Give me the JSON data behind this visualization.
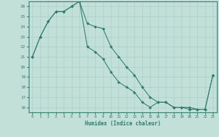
{
  "line1_x": [
    0,
    1,
    2,
    3,
    4,
    5,
    6,
    7,
    8,
    9,
    10,
    11,
    12,
    13,
    14,
    15,
    16,
    17,
    18,
    19,
    20,
    21,
    22,
    23
  ],
  "line1_y": [
    21,
    23,
    24.5,
    25.5,
    25.5,
    26,
    26.5,
    24.3,
    24,
    23.8,
    22,
    21,
    20,
    19.2,
    18,
    17,
    16.5,
    16.5,
    16,
    16,
    16,
    15.8,
    15.8,
    19.2
  ],
  "line2_x": [
    0,
    1,
    2,
    3,
    4,
    5,
    6,
    7,
    8,
    9,
    10,
    11,
    12,
    13,
    14,
    15,
    16,
    17,
    18,
    19,
    20,
    21,
    22,
    23
  ],
  "line2_y": [
    21,
    23,
    24.5,
    25.5,
    25.5,
    26,
    26.5,
    22,
    21.5,
    20.8,
    19.5,
    18.5,
    18,
    17.5,
    16.5,
    16,
    16.5,
    16.5,
    16,
    16,
    15.8,
    15.8,
    15.8,
    19.2
  ],
  "line_color": "#2e7d6e",
  "bg_color": "#c2e0d8",
  "grid_color": "#a8cfc8",
  "xlabel": "Humidex (Indice chaleur)",
  "xlim": [
    -0.5,
    23.5
  ],
  "ylim": [
    15.5,
    26.5
  ],
  "yticks": [
    16,
    17,
    18,
    19,
    20,
    21,
    22,
    23,
    24,
    25,
    26
  ],
  "xticks": [
    0,
    1,
    2,
    3,
    4,
    5,
    6,
    7,
    8,
    9,
    10,
    11,
    12,
    13,
    14,
    15,
    16,
    17,
    18,
    19,
    20,
    21,
    22,
    23
  ]
}
